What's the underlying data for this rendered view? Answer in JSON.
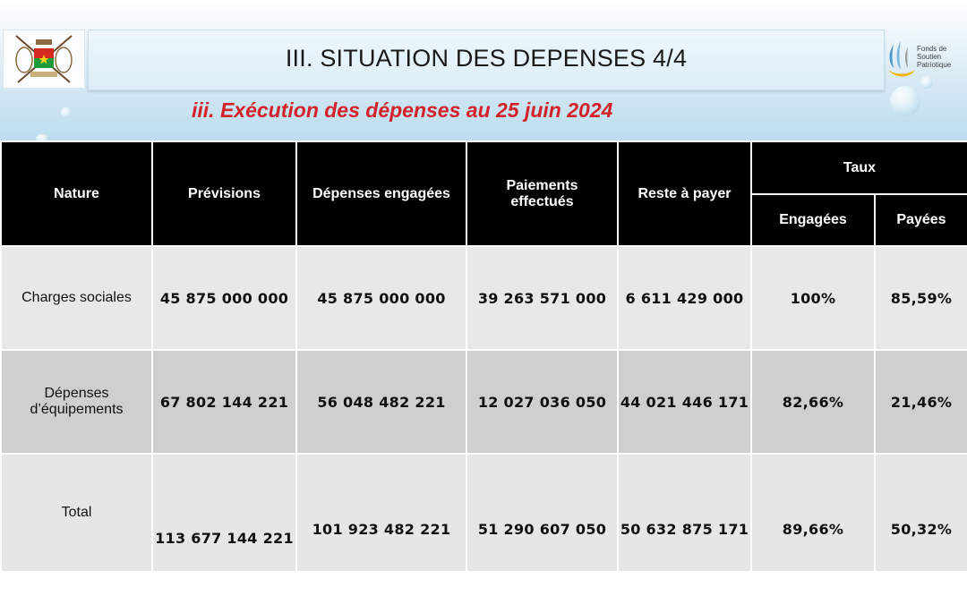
{
  "header": {
    "title": "III. SITUATION DES DEPENSES 4/4",
    "subtitle": "iii. Exécution des dépenses au 25 juin 2024",
    "logo_text_lines": [
      "Fonds de",
      "Soutien",
      "Patriotique"
    ]
  },
  "colors": {
    "subtitle": "#d3222a",
    "header_bg": "#000000",
    "row_light": "#e8e8e8",
    "row_dark": "#cfcfcf"
  },
  "table": {
    "headers": {
      "nature": "Nature",
      "previsions": "Prévisions",
      "engagees": "Dépenses engagées",
      "paiements": "Paiements effectués",
      "reste": "Reste à payer",
      "taux": "Taux",
      "taux_engagees": "Engagées",
      "taux_payees": "Payées"
    },
    "rows": [
      {
        "nature": "Charges sociales",
        "previsions": "45 875 000 000",
        "engagees": "45 875 000 000",
        "paiements": "39 263 571 000",
        "reste": "6 611 429 000",
        "taux_engagees": "100%",
        "taux_payees": "85,59%"
      },
      {
        "nature": "Dépenses d’équipements",
        "previsions": "67 802 144 221",
        "engagees": "56 048 482 221",
        "paiements": "12 027 036 050",
        "reste": "44 021 446 171",
        "taux_engagees": "82,66%",
        "taux_payees": "21,46%"
      },
      {
        "nature": "Total",
        "previsions": "113 677 144 221",
        "engagees": "101 923 482 221",
        "paiements": "51 290 607 050",
        "reste": "50 632 875 171",
        "taux_engagees": "89,66%",
        "taux_payees": "50,32%"
      }
    ]
  }
}
